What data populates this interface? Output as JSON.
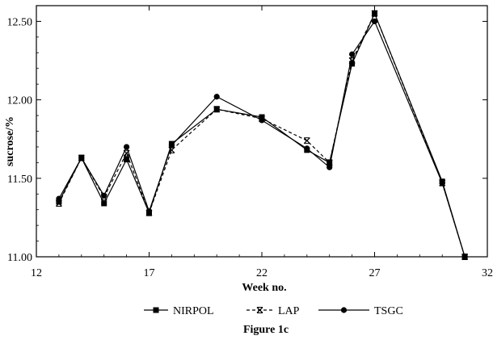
{
  "chart_data": {
    "type": "line",
    "xlabel": "Week no.",
    "ylabel": "sucrose/%",
    "caption": "Figure 1c",
    "xlim": [
      12,
      32
    ],
    "ylim": [
      11.0,
      12.6
    ],
    "xticks": [
      12,
      17,
      22,
      27,
      32
    ],
    "xtick_labels": [
      "12",
      "17",
      "22",
      "27",
      "32"
    ],
    "yticks": [
      11.0,
      11.5,
      12.0,
      12.5
    ],
    "ytick_labels": [
      "11.00",
      "11.50",
      "12.00",
      "12.50"
    ],
    "grid": false,
    "legend_position": "bottom",
    "series": [
      {
        "name": "NIRPOL",
        "marker": "square",
        "line": "solid",
        "x": [
          13,
          14,
          15,
          16,
          17,
          18,
          20,
          22,
          24,
          25,
          26,
          27,
          30,
          31
        ],
        "y": [
          11.35,
          11.63,
          11.34,
          11.62,
          11.28,
          11.72,
          11.94,
          11.89,
          11.68,
          11.6,
          12.23,
          12.55,
          11.48,
          11.0
        ]
      },
      {
        "name": "LAP",
        "marker": "x",
        "line": "dashed",
        "x": [
          13,
          14,
          15,
          16,
          17,
          18,
          20,
          22,
          24,
          25,
          26,
          27,
          30,
          31
        ],
        "y": [
          11.34,
          11.63,
          11.38,
          11.66,
          11.28,
          11.68,
          11.94,
          11.88,
          11.74,
          11.6,
          12.25,
          12.55,
          11.47,
          11.0
        ]
      },
      {
        "name": "TSGC",
        "marker": "circle",
        "line": "solid",
        "x": [
          13,
          14,
          15,
          16,
          17,
          18,
          20,
          22,
          24,
          25,
          26,
          27,
          30,
          31
        ],
        "y": [
          11.37,
          11.63,
          11.39,
          11.7,
          11.29,
          11.71,
          12.02,
          11.87,
          11.69,
          11.57,
          12.29,
          12.5,
          11.47,
          11.0
        ]
      }
    ]
  }
}
